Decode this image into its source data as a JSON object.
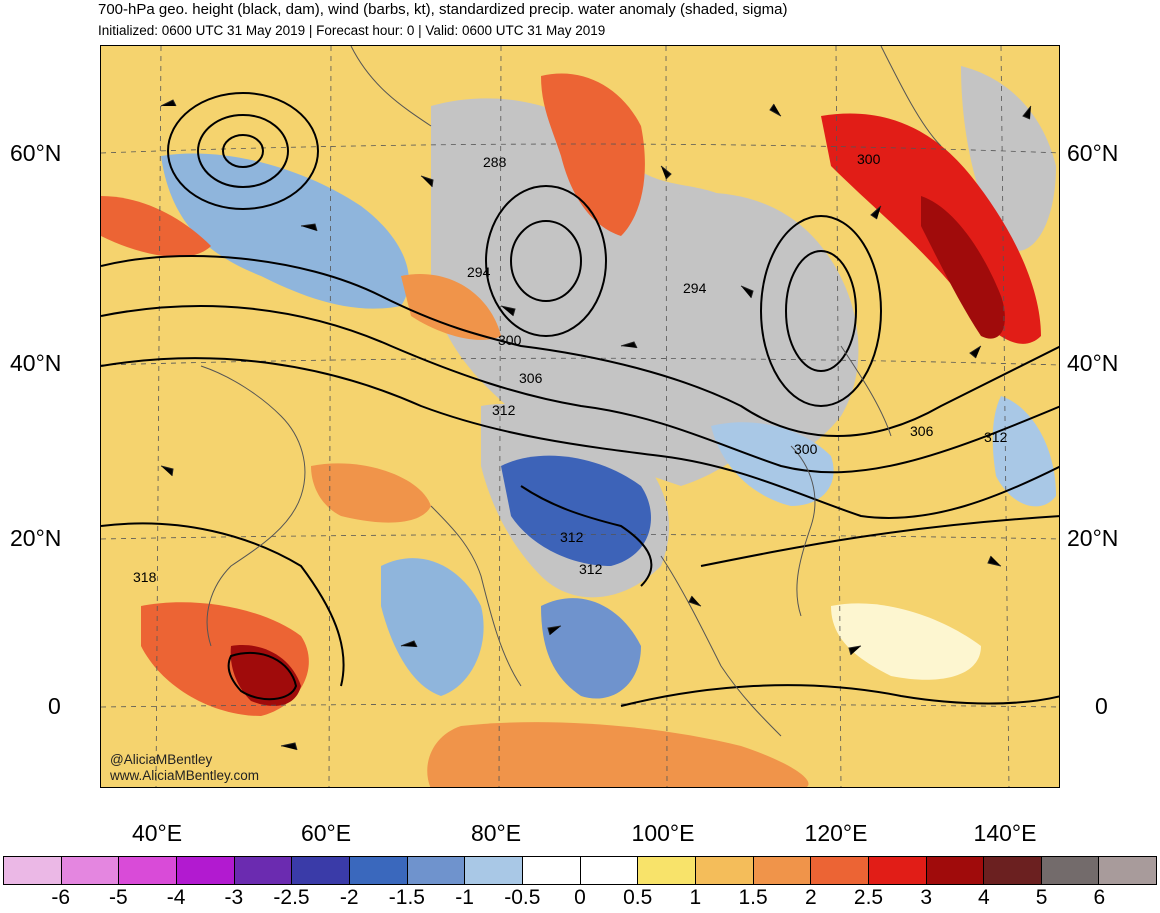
{
  "title": "700-hPa geo. height (black, dam), wind (barbs, kt), standardized precip. water anomaly (shaded, sigma)",
  "subtitle": "Initialized: 0600 UTC 31 May 2019 | Forecast hour: 0 | Valid: 0600 UTC 31 May 2019",
  "credit": {
    "line1": "@AliciaMBentley",
    "line2": "www.AliciaMBentley.com"
  },
  "lat_labels": [
    "60°N",
    "40°N",
    "20°N",
    "0"
  ],
  "lon_labels": [
    "40°E",
    "60°E",
    "80°E",
    "100°E",
    "120°E",
    "140°E"
  ],
  "contour_labels": [
    "288",
    "294",
    "294",
    "300",
    "300",
    "300",
    "306",
    "306",
    "312",
    "312",
    "312",
    "312",
    "318"
  ],
  "colorbar": {
    "colors": [
      "#ebb8e6",
      "#e486e0",
      "#d94bd8",
      "#b21ad0",
      "#6b2bb0",
      "#3a3ba8",
      "#3a68bd",
      "#6f93cd",
      "#a9c8e6",
      "#ffffff",
      "#ffffff",
      "#f8e36a",
      "#f4bd5a",
      "#f0944a",
      "#ec6434",
      "#e11d17",
      "#a00b0b",
      "#6b2020",
      "#736b6b",
      "#a89b9b"
    ],
    "labels": [
      "-6",
      "-5",
      "-4",
      "-3",
      "-2.5",
      "-2",
      "-1.5",
      "-1",
      "-0.5",
      "0",
      "0.5",
      "1",
      "1.5",
      "2",
      "2.5",
      "3",
      "4",
      "5",
      "6"
    ]
  },
  "palette": {
    "land_gray": "#c4c4c4",
    "ocean_pale": "#fdf0b0",
    "frame": "#000000"
  }
}
